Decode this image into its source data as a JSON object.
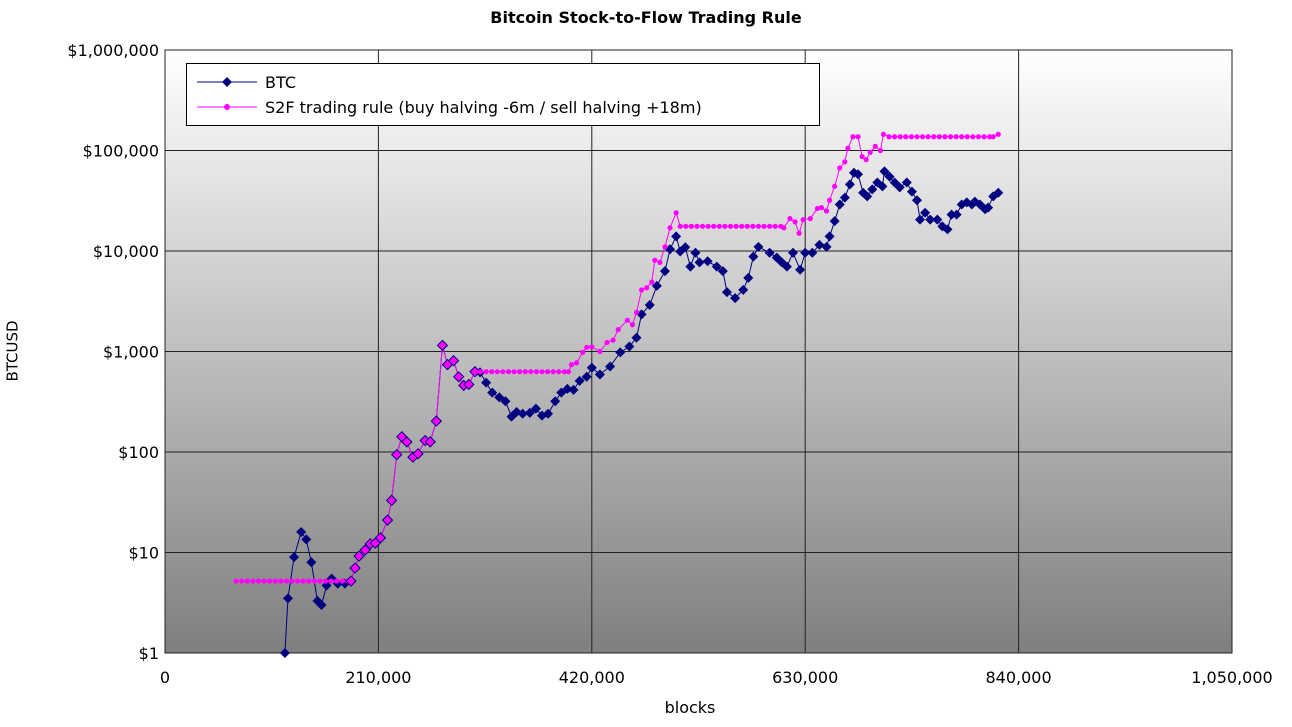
{
  "chart_data": {
    "type": "line",
    "title": "Bitcoin Stock-to-Flow Trading Rule",
    "xlabel": "blocks",
    "ylabel": "BTCUSD",
    "xlim": [
      0,
      1050000
    ],
    "ylim": [
      1,
      1000000
    ],
    "yscale": "log",
    "grid": true,
    "legend_position": "top-left",
    "x_ticks": [
      0,
      210000,
      420000,
      630000,
      840000,
      1050000
    ],
    "x_tick_labels": [
      "0",
      "210,000",
      "420,000",
      "630,000",
      "840,000",
      "1,050,000"
    ],
    "y_ticks": [
      1,
      10,
      100,
      1000,
      10000,
      100000,
      1000000
    ],
    "y_tick_labels": [
      "$1",
      "$10",
      "$100",
      "$1,000",
      "$10,000",
      "$100,000",
      "$1,000,000"
    ],
    "series": [
      {
        "name": "BTC",
        "color": "#000080",
        "marker": "diamond",
        "points": [
          [
            118000,
            1
          ],
          [
            121000,
            3.5
          ],
          [
            127000,
            9
          ],
          [
            134000,
            16
          ],
          [
            139000,
            13.5
          ],
          [
            144000,
            8
          ],
          [
            150000,
            3.3
          ],
          [
            154000,
            3
          ],
          [
            159000,
            4.7
          ],
          [
            164000,
            5.5
          ],
          [
            170000,
            4.9
          ],
          [
            177000,
            4.9
          ],
          [
            183000,
            5.2
          ],
          [
            187000,
            7
          ],
          [
            191000,
            9.2
          ],
          [
            197000,
            10.6
          ],
          [
            202000,
            12.2
          ],
          [
            207000,
            12.4
          ],
          [
            212000,
            14
          ],
          [
            219000,
            21
          ],
          [
            223000,
            33
          ],
          [
            228000,
            94
          ],
          [
            233000,
            142
          ],
          [
            238000,
            126
          ],
          [
            244000,
            89
          ],
          [
            249000,
            96
          ],
          [
            256000,
            130
          ],
          [
            261000,
            126
          ],
          [
            267000,
            203
          ],
          [
            273000,
            1150
          ],
          [
            278000,
            740
          ],
          [
            284000,
            810
          ],
          [
            289000,
            560
          ],
          [
            294000,
            460
          ],
          [
            299000,
            470
          ],
          [
            305000,
            630
          ],
          [
            310000,
            620
          ],
          [
            316000,
            490
          ],
          [
            322000,
            390
          ],
          [
            329000,
            350
          ],
          [
            335000,
            320
          ],
          [
            341000,
            225
          ],
          [
            346000,
            250
          ],
          [
            352000,
            240
          ],
          [
            359000,
            245
          ],
          [
            365000,
            270
          ],
          [
            371000,
            230
          ],
          [
            377000,
            240
          ],
          [
            384000,
            320
          ],
          [
            390000,
            390
          ],
          [
            396000,
            425
          ],
          [
            402000,
            415
          ],
          [
            408000,
            510
          ],
          [
            415000,
            560
          ],
          [
            420000,
            690
          ],
          [
            428000,
            590
          ],
          [
            438000,
            710
          ],
          [
            448000,
            980
          ],
          [
            457000,
            1120
          ],
          [
            464000,
            1370
          ],
          [
            469000,
            2340
          ],
          [
            477000,
            2900
          ],
          [
            484000,
            4500
          ],
          [
            492000,
            6300
          ],
          [
            497000,
            10400
          ],
          [
            503000,
            14000
          ],
          [
            507000,
            9900
          ],
          [
            512000,
            10900
          ],
          [
            517000,
            7000
          ],
          [
            522000,
            9600
          ],
          [
            526000,
            7700
          ],
          [
            534000,
            7900
          ],
          [
            543000,
            7000
          ],
          [
            549000,
            6300
          ],
          [
            553000,
            3900
          ],
          [
            561000,
            3400
          ],
          [
            569000,
            4100
          ],
          [
            574000,
            5400
          ],
          [
            579000,
            8800
          ],
          [
            584000,
            11000
          ],
          [
            595000,
            9600
          ],
          [
            602000,
            8600
          ],
          [
            607000,
            7700
          ],
          [
            612000,
            7000
          ],
          [
            618000,
            9600
          ],
          [
            625000,
            6500
          ],
          [
            630000,
            9600
          ],
          [
            637000,
            9600
          ],
          [
            644000,
            11500
          ],
          [
            651000,
            11000
          ],
          [
            654000,
            14000
          ],
          [
            659000,
            19800
          ],
          [
            664000,
            29000
          ],
          [
            669000,
            34000
          ],
          [
            674000,
            46000
          ],
          [
            678000,
            60000
          ],
          [
            682000,
            58000
          ],
          [
            687000,
            38000
          ],
          [
            691000,
            35000
          ],
          [
            696000,
            41000
          ],
          [
            701000,
            48000
          ],
          [
            706000,
            44000
          ],
          [
            708000,
            62000
          ],
          [
            713000,
            55000
          ],
          [
            718000,
            48000
          ],
          [
            723000,
            43000
          ],
          [
            730000,
            48000
          ],
          [
            735000,
            39000
          ],
          [
            740000,
            32000
          ],
          [
            743000,
            20500
          ],
          [
            748000,
            24000
          ],
          [
            753000,
            20500
          ],
          [
            760000,
            20500
          ],
          [
            765000,
            17600
          ],
          [
            770000,
            16400
          ],
          [
            774000,
            23000
          ],
          [
            779000,
            23000
          ],
          [
            784000,
            29000
          ],
          [
            789000,
            30500
          ],
          [
            794000,
            29000
          ],
          [
            797000,
            31000
          ],
          [
            802000,
            29000
          ],
          [
            807000,
            26000
          ],
          [
            810000,
            27000
          ],
          [
            815000,
            35000
          ],
          [
            820000,
            38000
          ]
        ]
      },
      {
        "name": "S2F trading rule (buy halving -6m / sell halving +18m)",
        "color": "#ff00ff",
        "marker": "circle",
        "points": [
          [
            70000,
            5.2
          ],
          [
            75500,
            5.2
          ],
          [
            81000,
            5.2
          ],
          [
            86500,
            5.2
          ],
          [
            92000,
            5.2
          ],
          [
            97500,
            5.2
          ],
          [
            103000,
            5.2
          ],
          [
            108500,
            5.2
          ],
          [
            114000,
            5.2
          ],
          [
            119500,
            5.2
          ],
          [
            125000,
            5.2
          ],
          [
            130500,
            5.2
          ],
          [
            136000,
            5.2
          ],
          [
            141500,
            5.2
          ],
          [
            147000,
            5.2
          ],
          [
            152500,
            5.2
          ],
          [
            158000,
            5.2
          ],
          [
            163500,
            5.2
          ],
          [
            169000,
            5.2
          ],
          [
            174500,
            5.2
          ],
          [
            180000,
            5.2
          ],
          [
            183000,
            5.2
          ],
          [
            187000,
            7
          ],
          [
            191000,
            9.2
          ],
          [
            197000,
            10.6
          ],
          [
            202000,
            12.2
          ],
          [
            207000,
            12.4
          ],
          [
            212000,
            14
          ],
          [
            219000,
            21
          ],
          [
            223000,
            33
          ],
          [
            228000,
            94
          ],
          [
            233000,
            142
          ],
          [
            238000,
            126
          ],
          [
            244000,
            89
          ],
          [
            249000,
            96
          ],
          [
            256000,
            130
          ],
          [
            261000,
            126
          ],
          [
            267000,
            203
          ],
          [
            273000,
            1150
          ],
          [
            278000,
            740
          ],
          [
            284000,
            810
          ],
          [
            289000,
            560
          ],
          [
            294000,
            460
          ],
          [
            299000,
            470
          ],
          [
            305000,
            630
          ],
          [
            310500,
            630
          ],
          [
            316000,
            630
          ],
          [
            321500,
            630
          ],
          [
            327000,
            630
          ],
          [
            332500,
            630
          ],
          [
            338000,
            630
          ],
          [
            343500,
            630
          ],
          [
            349000,
            630
          ],
          [
            354500,
            630
          ],
          [
            360000,
            630
          ],
          [
            365500,
            630
          ],
          [
            371000,
            630
          ],
          [
            376500,
            630
          ],
          [
            382000,
            630
          ],
          [
            387500,
            630
          ],
          [
            393000,
            630
          ],
          [
            397000,
            630
          ],
          [
            400000,
            740
          ],
          [
            405000,
            770
          ],
          [
            411000,
            980
          ],
          [
            415000,
            1100
          ],
          [
            420000,
            1110
          ],
          [
            428000,
            1000
          ],
          [
            435000,
            1230
          ],
          [
            441000,
            1300
          ],
          [
            446000,
            1650
          ],
          [
            455000,
            2050
          ],
          [
            460000,
            1850
          ],
          [
            464000,
            2450
          ],
          [
            469000,
            4100
          ],
          [
            474000,
            4300
          ],
          [
            479000,
            4900
          ],
          [
            482000,
            8100
          ],
          [
            487000,
            7700
          ],
          [
            492000,
            11000
          ],
          [
            497000,
            17000
          ],
          [
            503000,
            24000
          ],
          [
            507000,
            17600
          ],
          [
            512500,
            17600
          ],
          [
            518000,
            17600
          ],
          [
            523500,
            17600
          ],
          [
            529000,
            17600
          ],
          [
            534500,
            17600
          ],
          [
            540000,
            17600
          ],
          [
            545500,
            17600
          ],
          [
            551000,
            17600
          ],
          [
            556500,
            17600
          ],
          [
            562000,
            17600
          ],
          [
            567500,
            17600
          ],
          [
            573000,
            17600
          ],
          [
            578500,
            17600
          ],
          [
            584000,
            17600
          ],
          [
            589500,
            17600
          ],
          [
            595000,
            17600
          ],
          [
            600500,
            17600
          ],
          [
            606000,
            17600
          ],
          [
            609000,
            17000
          ],
          [
            615000,
            21000
          ],
          [
            620000,
            19500
          ],
          [
            624000,
            15000
          ],
          [
            628000,
            20500
          ],
          [
            635000,
            21000
          ],
          [
            642000,
            26500
          ],
          [
            646000,
            27000
          ],
          [
            651000,
            25000
          ],
          [
            654000,
            32000
          ],
          [
            659000,
            44000
          ],
          [
            664000,
            67000
          ],
          [
            669000,
            77000
          ],
          [
            672000,
            105000
          ],
          [
            677000,
            137000
          ],
          [
            682000,
            137000
          ],
          [
            686000,
            87000
          ],
          [
            690000,
            81000
          ],
          [
            694000,
            96000
          ],
          [
            699000,
            110000
          ],
          [
            704000,
            100000
          ],
          [
            707000,
            145000
          ],
          [
            712500,
            137000
          ],
          [
            718000,
            137000
          ],
          [
            723500,
            137000
          ],
          [
            729000,
            137000
          ],
          [
            734500,
            137000
          ],
          [
            740000,
            137000
          ],
          [
            745500,
            137000
          ],
          [
            751000,
            137000
          ],
          [
            756500,
            137000
          ],
          [
            762000,
            137000
          ],
          [
            767500,
            137000
          ],
          [
            773000,
            137000
          ],
          [
            778500,
            137000
          ],
          [
            784000,
            137000
          ],
          [
            789500,
            137000
          ],
          [
            795000,
            137000
          ],
          [
            800500,
            137000
          ],
          [
            806000,
            137000
          ],
          [
            811500,
            137000
          ],
          [
            815000,
            137000
          ],
          [
            820000,
            145000
          ]
        ]
      }
    ]
  }
}
